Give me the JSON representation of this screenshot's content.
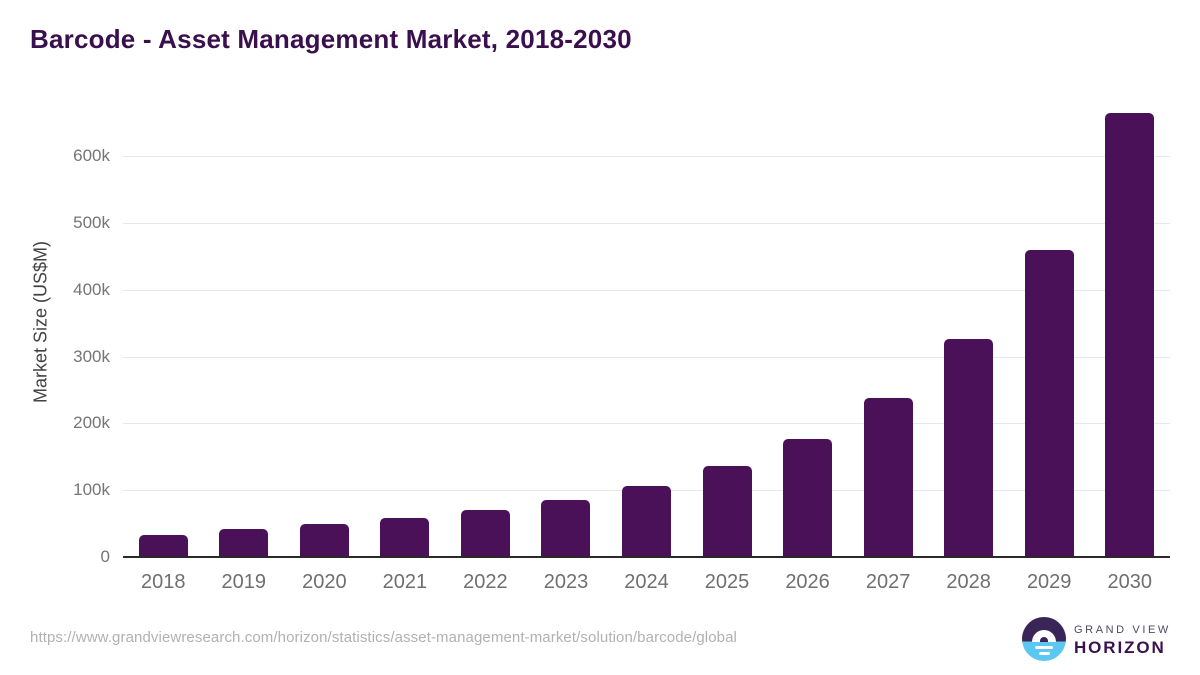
{
  "header": {
    "title": "Barcode - Asset Management Market, 2018-2030"
  },
  "chart_data": {
    "type": "bar",
    "title": "Barcode - Asset Management Market, 2018-2030",
    "categories": [
      "2018",
      "2019",
      "2020",
      "2021",
      "2022",
      "2023",
      "2024",
      "2025",
      "2026",
      "2027",
      "2028",
      "2029",
      "2030"
    ],
    "values": [
      33000,
      42000,
      50000,
      59000,
      70000,
      86000,
      106000,
      136000,
      176000,
      238000,
      327000,
      460000,
      664000
    ],
    "xlabel": "",
    "ylabel": "Market Size (US$M)",
    "ylim": [
      0,
      680000
    ],
    "y_ticks": [
      {
        "value": 0,
        "label": "0"
      },
      {
        "value": 100000,
        "label": "100k"
      },
      {
        "value": 200000,
        "label": "200k"
      },
      {
        "value": 300000,
        "label": "300k"
      },
      {
        "value": 400000,
        "label": "400k"
      },
      {
        "value": 500000,
        "label": "500k"
      },
      {
        "value": 600000,
        "label": "600k"
      }
    ],
    "grid": "horizontal-only",
    "legend_position": "none",
    "bar_color": "#4a1158"
  },
  "footer": {
    "source_url": "https://www.grandviewresearch.com/horizon/statistics/asset-management-market/solution/barcode/global",
    "logo": {
      "line1": "GRAND VIEW",
      "line2": "HORIZON"
    }
  },
  "colors": {
    "bar": "#4a1158",
    "title": "#3a0f4d",
    "gridline": "#e8e8e8",
    "axis_line": "#2a2a2a",
    "tick_label": "#757575",
    "x_tick_label": "#6f6f6f",
    "axis_title": "#424242",
    "source_url": "#b1b1b1",
    "logo_purple": "#3a2558",
    "logo_blue": "#5cc7f0",
    "logo_wordmark": "#3a1150"
  }
}
